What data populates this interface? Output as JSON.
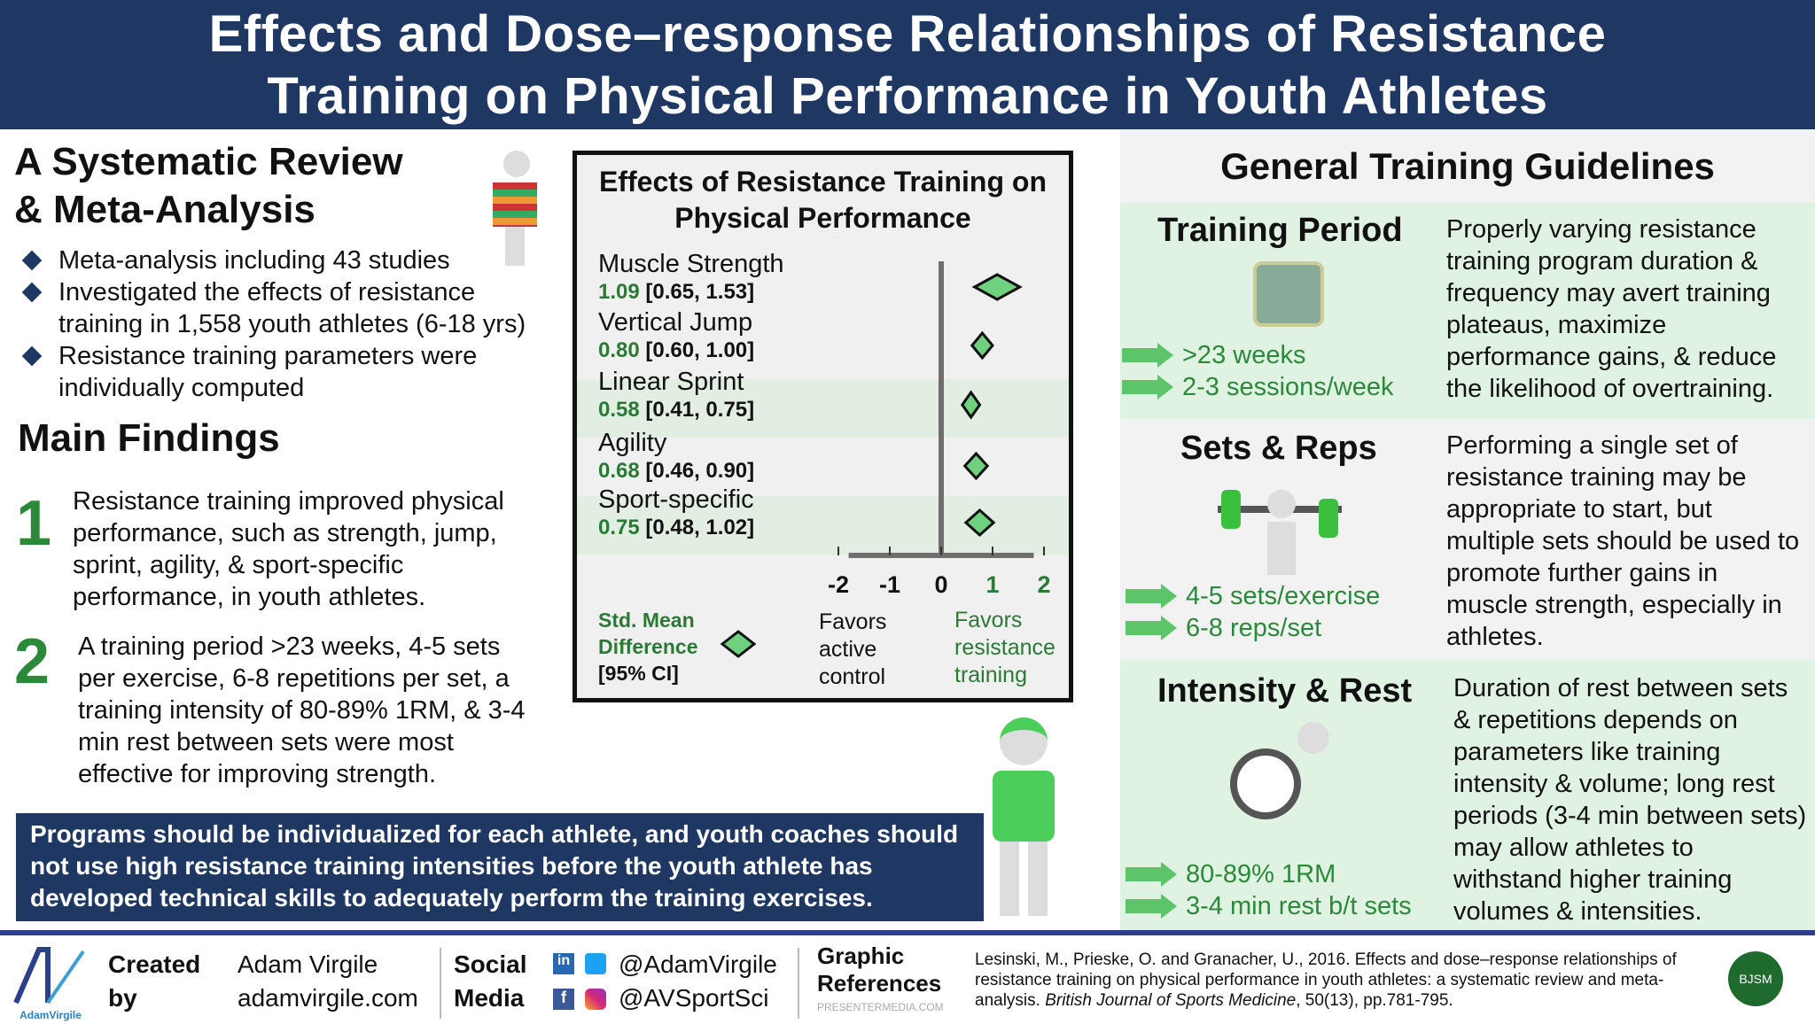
{
  "header": {
    "title_line1": "Effects and Dose–response Relationships of Resistance",
    "title_line2": "Training on Physical Performance in Youth Athletes"
  },
  "left": {
    "heading1": "A Systematic Review",
    "heading2": "& Meta-Analysis",
    "bullets": [
      "Meta-analysis including 43 studies",
      "Investigated the effects of resistance training in 1,558 youth athletes (6-18 yrs)",
      "Resistance training parameters were individually computed"
    ],
    "findings_title": "Main Findings",
    "findings": [
      {
        "num": "1",
        "text": "Resistance training improved physical performance, such as strength, jump, sprint, agility, & sport-specific performance, in youth athletes."
      },
      {
        "num": "2",
        "text": "A training period >23 weeks, 4-5 sets per exercise, 6-8 repetitions per set, a training intensity of 80-89% 1RM, & 3-4 min rest between sets were most effective for improving strength."
      }
    ]
  },
  "chart_data": {
    "type": "forest",
    "title": "Effects of Resistance Training on Physical Performance",
    "xlim": [
      -2.5,
      2.5
    ],
    "xticks": [
      "-2",
      "-1",
      "0",
      "1",
      "2"
    ],
    "outcomes": [
      {
        "label": "Muscle Strength",
        "smd": "1.09",
        "ci": "[0.65, 1.53]",
        "est": 1.09,
        "lo": 0.65,
        "hi": 1.53
      },
      {
        "label": "Vertical Jump",
        "smd": "0.80",
        "ci": "[0.60, 1.00]",
        "est": 0.8,
        "lo": 0.6,
        "hi": 1.0
      },
      {
        "label": "Linear Sprint",
        "smd": "0.58",
        "ci": "[0.41, 0.75]",
        "est": 0.58,
        "lo": 0.41,
        "hi": 0.75
      },
      {
        "label": "Agility",
        "smd": "0.68",
        "ci": "[0.46, 0.90]",
        "est": 0.68,
        "lo": 0.46,
        "hi": 0.9
      },
      {
        "label": "Sport-specific",
        "smd": "0.75",
        "ci": "[0.48, 1.02]",
        "est": 0.75,
        "lo": 0.48,
        "hi": 1.02
      }
    ],
    "legend_line1": "Std. Mean",
    "legend_line2": "Difference",
    "legend_line3": "[95% CI]",
    "favors_left": [
      "Favors",
      "active",
      "control"
    ],
    "favors_right": [
      "Favors",
      "resistance",
      "training"
    ],
    "colors": {
      "diamond": "#6fd17e",
      "green_text": "#2a7a35",
      "axis": "#736e6e"
    }
  },
  "right": {
    "title": "General Training Guidelines",
    "sections": [
      {
        "title": "Training Period",
        "items": [
          ">23 weeks",
          "2-3 sessions/week"
        ],
        "desc": "Properly varying resistance training program duration & frequency may avert training plateaus, maximize performance gains, & reduce the likelihood of overtraining."
      },
      {
        "title": "Sets & Reps",
        "items": [
          "4-5 sets/exercise",
          "6-8 reps/set"
        ],
        "desc": "Performing a single set of resistance training may be appropriate to start, but multiple sets should be used to promote further gains in muscle strength, especially in athletes."
      },
      {
        "title": "Intensity & Rest",
        "items": [
          "80-89% 1RM",
          "3-4 min rest b/t sets"
        ],
        "desc": "Duration of rest between sets & repetitions depends on parameters like training intensity & volume; long rest periods (3-4 min between sets) may allow athletes to withstand higher training volumes & intensities."
      }
    ]
  },
  "callout": "Programs should be individualized for each athlete, and youth coaches should not use high resistance training intensities before the youth athlete has developed technical skills to adequately perform the training exercises.",
  "watermark": "AdamVirgile",
  "footer": {
    "logo_text": "AdamVirgile",
    "created_label1": "Created",
    "created_label2": "by",
    "name": "Adam Virgile",
    "site": "adamvirgile.com",
    "social_label1": "Social",
    "social_label2": "Media",
    "handle1": "@AdamVirgile",
    "handle2": "@AVSportSci",
    "graphic_label1": "Graphic",
    "graphic_label2": "References",
    "graphic_source": "PRESENTERMEDIA.COM",
    "reference_main": "Lesinski, M., Prieske, O. and Granacher, U., 2016. Effects and dose–response relationships of resistance training on physical performance in youth athletes: a systematic review and meta-analysis. ",
    "reference_journal": "British Journal of Sports Medicine",
    "reference_tail": ", 50(13), pp.781-795.",
    "badge_text": "BJSM"
  }
}
